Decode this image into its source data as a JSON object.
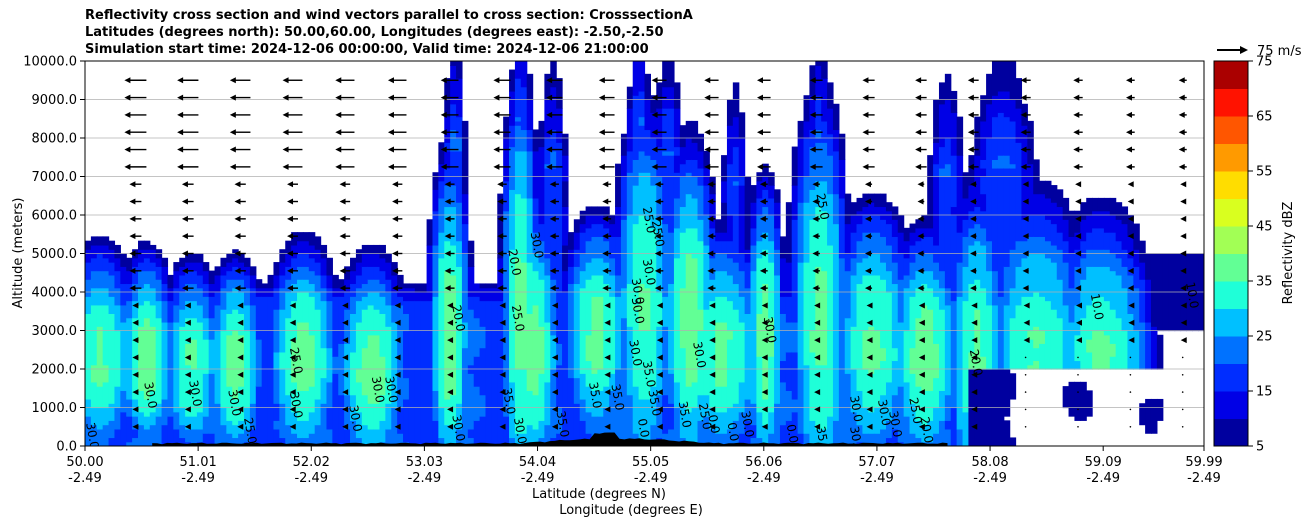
{
  "chart_data": {
    "type": "contourf",
    "title_lines": [
      "Reflectivity cross section and wind vectors parallel to cross section: CrosssectionA",
      "Latitudes (degrees north): 50.00,60.00, Longitudes (degrees east): -2.50,-2.50",
      "Simulation start time: 2024-12-06 00:00:00, Valid time: 2024-12-06 21:00:00"
    ],
    "ylabel": "Altitude (meters)",
    "xlabel_lat": "Latitude (degrees N)",
    "xlabel_lon": "Longitude (degrees E)",
    "ylim": [
      0,
      10000
    ],
    "yticks": [
      "0.0",
      "1000.0",
      "2000.0",
      "3000.0",
      "4000.0",
      "5000.0",
      "6000.0",
      "7000.0",
      "8000.0",
      "9000.0",
      "10000.0"
    ],
    "xticks_lat": [
      "50.00",
      "51.01",
      "52.02",
      "53.03",
      "54.04",
      "55.05",
      "56.06",
      "57.07",
      "58.08",
      "59.09",
      "59.99"
    ],
    "xticks_lon": [
      "-2.49",
      "-2.49",
      "-2.49",
      "-2.49",
      "-2.49",
      "-2.49",
      "-2.49",
      "-2.49",
      "-2.49",
      "-2.49",
      "-2.49"
    ],
    "wind_key_label": "75 m/s",
    "colorbar": {
      "label": "Reflectivity dBZ",
      "levels": [
        5,
        10,
        15,
        20,
        25,
        30,
        35,
        40,
        45,
        50,
        55,
        60,
        65,
        70,
        75
      ],
      "tick_labels": [
        "5",
        "15",
        "25",
        "35",
        "45",
        "55",
        "65",
        "75"
      ],
      "colors": [
        "#00009f",
        "#0000e6",
        "#002dff",
        "#0072ff",
        "#00c0ff",
        "#1fffd8",
        "#62ff95",
        "#a2ff55",
        "#d9ff1f",
        "#ffdd00",
        "#ff9a00",
        "#ff5600",
        "#ff1200",
        "#aa0000"
      ]
    },
    "contour_labels": [
      {
        "text": "30.0",
        "lat": 50.03,
        "alt": 250
      },
      {
        "text": "30.0",
        "lat": 50.55,
        "alt": 1300
      },
      {
        "text": "30.0",
        "lat": 50.95,
        "alt": 1350
      },
      {
        "text": "30.0",
        "lat": 51.3,
        "alt": 1100
      },
      {
        "text": "25.0",
        "lat": 51.44,
        "alt": 380
      },
      {
        "text": "25.0",
        "lat": 51.85,
        "alt": 2200
      },
      {
        "text": "30.0",
        "lat": 51.85,
        "alt": 1050
      },
      {
        "text": "30.0",
        "lat": 52.38,
        "alt": 700
      },
      {
        "text": "30.0",
        "lat": 52.58,
        "alt": 1450
      },
      {
        "text": "30.0",
        "lat": 52.7,
        "alt": 1450
      },
      {
        "text": "20.0",
        "lat": 53.3,
        "alt": 3300
      },
      {
        "text": "30.0",
        "lat": 53.3,
        "alt": 450
      },
      {
        "text": "35.0",
        "lat": 53.75,
        "alt": 1150
      },
      {
        "text": "30.0",
        "lat": 53.85,
        "alt": 380
      },
      {
        "text": "25.0",
        "lat": 53.83,
        "alt": 3300
      },
      {
        "text": "20.0",
        "lat": 53.8,
        "alt": 4750
      },
      {
        "text": "30.0",
        "lat": 54.0,
        "alt": 5200
      },
      {
        "text": "35.0",
        "lat": 54.23,
        "alt": 550
      },
      {
        "text": "35.0",
        "lat": 54.52,
        "alt": 1300
      },
      {
        "text": "35.0",
        "lat": 54.72,
        "alt": 1250
      },
      {
        "text": "25.0",
        "lat": 55.0,
        "alt": 5850
      },
      {
        "text": "25.0",
        "lat": 55.08,
        "alt": 5500
      },
      {
        "text": "30.0",
        "lat": 55.0,
        "alt": 4500
      },
      {
        "text": "30.0",
        "lat": 54.9,
        "alt": 4000
      },
      {
        "text": "30.0",
        "lat": 54.9,
        "alt": 3500
      },
      {
        "text": "30.0",
        "lat": 54.88,
        "alt": 2400
      },
      {
        "text": "35.0",
        "lat": 55.0,
        "alt": 1850
      },
      {
        "text": "35.0",
        "lat": 55.05,
        "alt": 1100
      },
      {
        "text": "0.0",
        "lat": 54.95,
        "alt": 450
      },
      {
        "text": "35.0",
        "lat": 55.32,
        "alt": 800
      },
      {
        "text": "25.0",
        "lat": 55.5,
        "alt": 750
      },
      {
        "text": "0.0",
        "lat": 55.58,
        "alt": 550
      },
      {
        "text": "30.0",
        "lat": 55.45,
        "alt": 2350
      },
      {
        "text": "30.0",
        "lat": 56.08,
        "alt": 3000
      },
      {
        "text": "0.0",
        "lat": 55.75,
        "alt": 350
      },
      {
        "text": "30.0",
        "lat": 55.88,
        "alt": 550
      },
      {
        "text": "0.0",
        "lat": 56.28,
        "alt": 300
      },
      {
        "text": "25.0",
        "lat": 56.55,
        "alt": 6200
      },
      {
        "text": "35.0",
        "lat": 56.55,
        "alt": 150
      },
      {
        "text": "30.0",
        "lat": 56.85,
        "alt": 150
      },
      {
        "text": "30.0",
        "lat": 56.85,
        "alt": 950
      },
      {
        "text": "30.0",
        "lat": 57.1,
        "alt": 850
      },
      {
        "text": "30.0",
        "lat": 57.2,
        "alt": 550
      },
      {
        "text": "25.0",
        "lat": 57.38,
        "alt": 900
      },
      {
        "text": "20.0",
        "lat": 57.48,
        "alt": 400
      },
      {
        "text": "20.0",
        "lat": 57.92,
        "alt": 2150
      },
      {
        "text": "10.0",
        "lat": 59.0,
        "alt": 3600
      },
      {
        "text": "10.0",
        "lat": 59.85,
        "alt": 3900
      }
    ]
  }
}
